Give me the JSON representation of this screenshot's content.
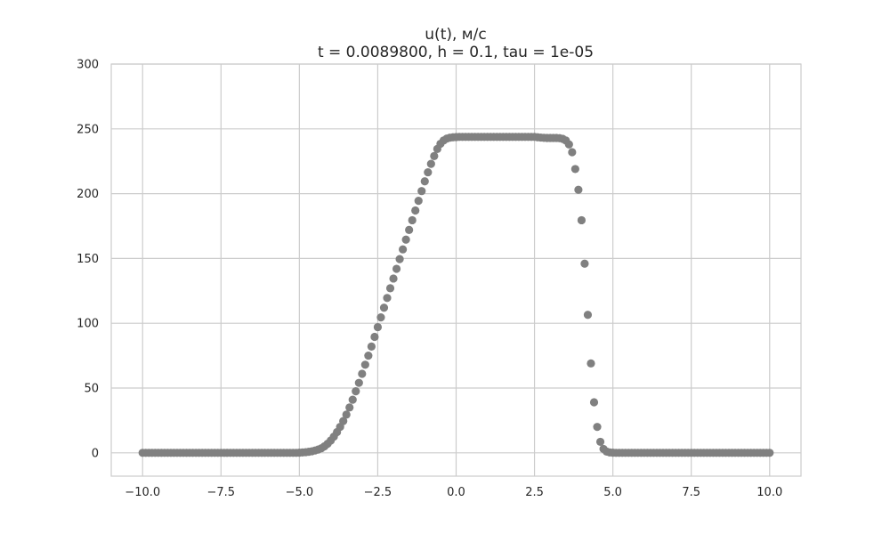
{
  "chart_data": {
    "type": "scatter",
    "title": "u(t), м/с",
    "subtitle": "t = 0.0089800, h = 0.1, tau = 1e-05",
    "xlabel": "",
    "ylabel": "",
    "xlim": [
      -11.0,
      11.0
    ],
    "ylim": [
      -18,
      300
    ],
    "x_ticks": [
      -10.0,
      -7.5,
      -5.0,
      -2.5,
      0.0,
      2.5,
      5.0,
      7.5,
      10.0
    ],
    "x_tick_labels": [
      "−10.0",
      "−7.5",
      "−5.0",
      "−2.5",
      "0.0",
      "2.5",
      "5.0",
      "7.5",
      "10.0"
    ],
    "y_ticks": [
      0,
      50,
      100,
      150,
      200,
      250,
      300
    ],
    "y_tick_labels": [
      "0",
      "50",
      "100",
      "150",
      "200",
      "250",
      "300"
    ],
    "grid": true,
    "marker_color": "#808080",
    "grid_color": "#cccccc",
    "series": [
      {
        "x_start": -10.0,
        "x_step": 0.1,
        "y": [
          0,
          0,
          0,
          0,
          0,
          0,
          0,
          0,
          0,
          0,
          0,
          0,
          0,
          0,
          0,
          0,
          0,
          0,
          0,
          0,
          0,
          0,
          0,
          0,
          0,
          0,
          0,
          0,
          0,
          0,
          0,
          0,
          0,
          0,
          0,
          0,
          0,
          0,
          0,
          0,
          0,
          0,
          0,
          0,
          0,
          0,
          0,
          0,
          0,
          0,
          0.1,
          0.3,
          0.5,
          0.8,
          1.2,
          1.8,
          2.5,
          3.5,
          5,
          7,
          9.5,
          12.5,
          16,
          20,
          24.5,
          29.5,
          35,
          41,
          47.5,
          54,
          61,
          68,
          75,
          82,
          89.5,
          97,
          104.5,
          112,
          119.5,
          127,
          134.5,
          142,
          149.5,
          157,
          164.5,
          172,
          179.5,
          187,
          194.5,
          202,
          209.5,
          216.5,
          223,
          229,
          234.5,
          238.5,
          241,
          242.5,
          243.2,
          243.5,
          243.7,
          243.8,
          243.8,
          243.8,
          243.8,
          243.8,
          243.8,
          243.8,
          243.8,
          243.8,
          243.8,
          243.8,
          243.8,
          243.8,
          243.8,
          243.8,
          243.8,
          243.8,
          243.8,
          243.8,
          243.8,
          243.8,
          243.8,
          243.8,
          243.8,
          243.8,
          243.5,
          243.3,
          243.1,
          243,
          243,
          243,
          243,
          242.8,
          242.3,
          241,
          238,
          232,
          219,
          203,
          179.5,
          146,
          106.5,
          69,
          39,
          20,
          8.5,
          3,
          1,
          0.3,
          0.1,
          0,
          0,
          0,
          0,
          0,
          0,
          0,
          0,
          0,
          0,
          0,
          0,
          0,
          0,
          0,
          0,
          0,
          0,
          0,
          0,
          0,
          0,
          0,
          0,
          0,
          0,
          0,
          0,
          0,
          0,
          0,
          0,
          0,
          0,
          0,
          0,
          0,
          0,
          0,
          0,
          0,
          0,
          0,
          0,
          0,
          0,
          0,
          0,
          0,
          0
        ]
      }
    ]
  }
}
